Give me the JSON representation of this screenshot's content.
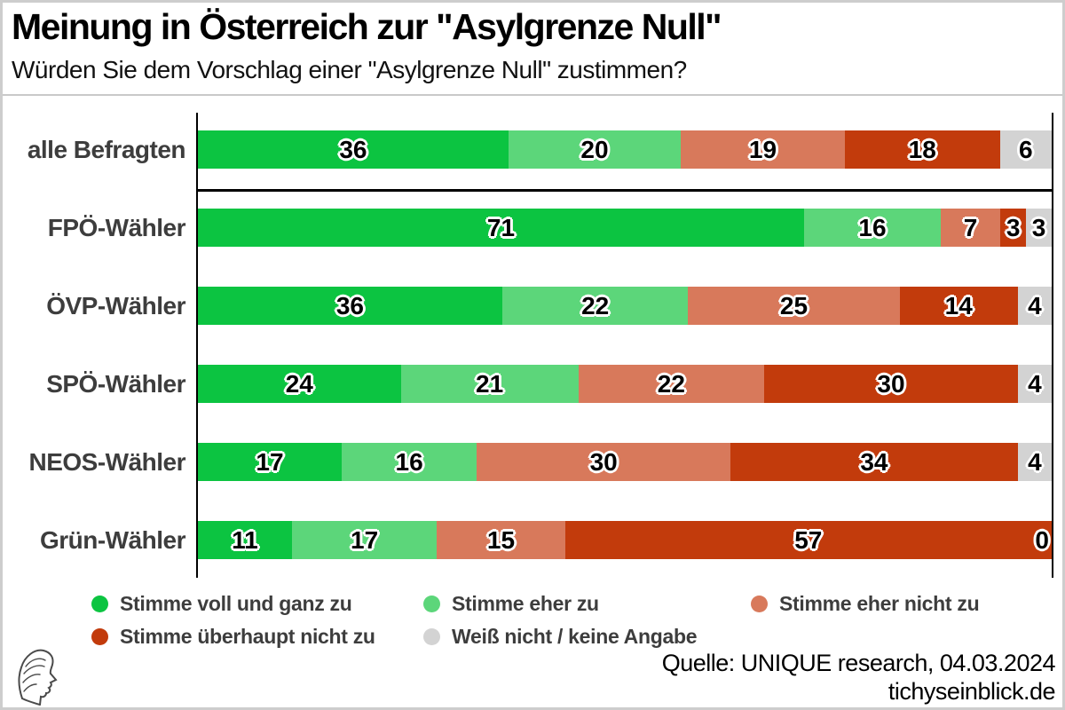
{
  "header": {
    "title": "Meinung in Österreich zur \"Asylgrenze Null\"",
    "subtitle": "Würden Sie dem Vorschlag einer \"Asylgrenze Null\" zustimmen?"
  },
  "footer": {
    "source": "Quelle: UNIQUE research, 04.03.2024",
    "website": "tichyseinblick.de",
    "logo_icon": "classical-profile-head"
  },
  "colors": {
    "agree_full": "#0cc441",
    "agree_somewhat": "#5cd67a",
    "disagree_somewhat": "#d8795b",
    "disagree_full": "#c23b0c",
    "dont_know": "#d3d3d3",
    "axis": "#000000",
    "label_text": "#3d3d3d",
    "divider": "#c9c9c9"
  },
  "chart_data": {
    "type": "bar",
    "orientation": "horizontal_stacked",
    "value_format": "percent",
    "xlim": [
      0,
      100
    ],
    "grid": false,
    "value_labels": true,
    "legend_position": "bottom-left",
    "categories": [
      "alle Befragten",
      "FPÖ-Wähler",
      "ÖVP-Wähler",
      "SPÖ-Wähler",
      "NEOS-Wähler",
      "Grün-Wähler"
    ],
    "series": [
      {
        "name": "Stimme voll und ganz zu",
        "color": "#0cc441",
        "values": [
          36,
          71,
          36,
          24,
          17,
          11
        ]
      },
      {
        "name": "Stimme eher zu",
        "color": "#5cd67a",
        "values": [
          20,
          16,
          22,
          21,
          16,
          17
        ]
      },
      {
        "name": "Stimme eher nicht zu",
        "color": "#d8795b",
        "values": [
          19,
          7,
          25,
          22,
          30,
          15
        ]
      },
      {
        "name": "Stimme überhaupt nicht zu",
        "color": "#c23b0c",
        "values": [
          18,
          3,
          14,
          30,
          34,
          57
        ]
      },
      {
        "name": "Weiß nicht / keine Angabe",
        "color": "#d3d3d3",
        "values": [
          6,
          3,
          4,
          4,
          4,
          0
        ]
      }
    ]
  }
}
